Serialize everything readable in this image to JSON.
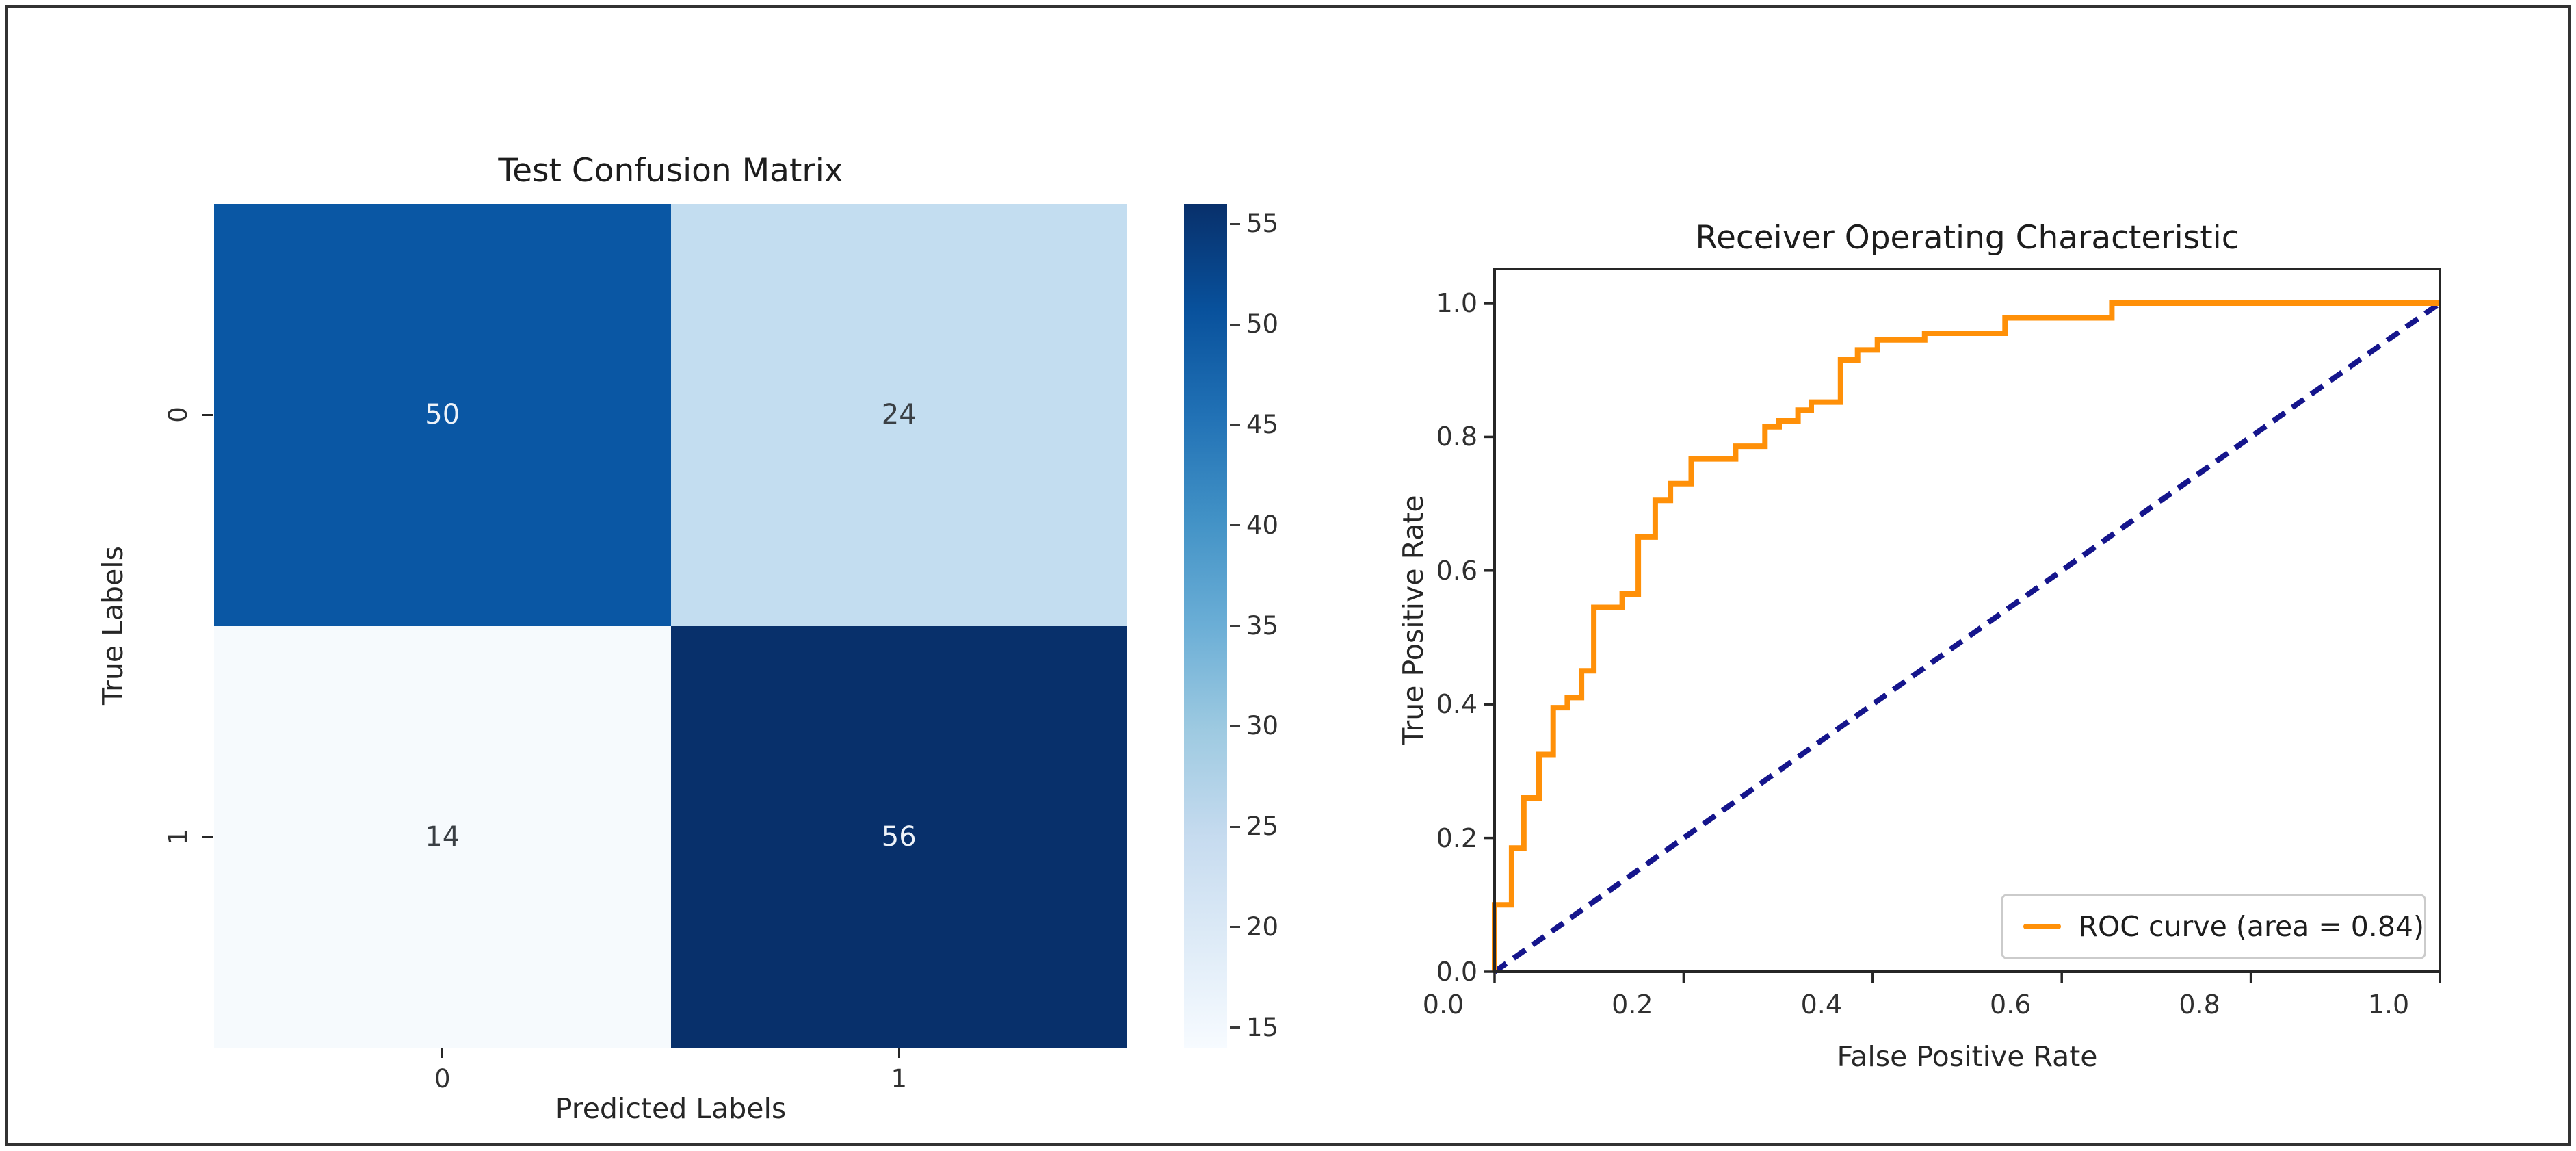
{
  "figure": {
    "frame_color": "#323232",
    "background": "#ffffff"
  },
  "colors": {
    "roc_curve": "#ff9008",
    "chance_line": "#15158c",
    "spine": "#262626",
    "legend_border": "#cbcbcb",
    "cell_text_light": "#eef3f9",
    "cell_text_dark": "#3a3f44"
  },
  "chart_data": [
    {
      "type": "heatmap",
      "title": "Test Confusion Matrix",
      "xlabel": "Predicted Labels",
      "ylabel": "True Labels",
      "col_labels": [
        "0",
        "1"
      ],
      "row_labels": [
        "0",
        "1"
      ],
      "matrix": [
        [
          50,
          24
        ],
        [
          14,
          56
        ]
      ],
      "cell_colors": [
        [
          "#0a57a4",
          "#c3ddf0"
        ],
        [
          "#f6fafd",
          "#08306b"
        ]
      ],
      "cell_text_colors": [
        [
          "#eef3f9",
          "#3a3f44"
        ],
        [
          "#3a3f44",
          "#eef3f9"
        ]
      ],
      "colormap": "Blues",
      "colorbar": {
        "vmin": 14,
        "vmax": 56,
        "ticks": [
          15,
          20,
          25,
          30,
          35,
          40,
          45,
          50,
          55
        ],
        "gradient_stops": [
          "#f7fbff",
          "#deebf7",
          "#c6dbef",
          "#9ecae1",
          "#6baed6",
          "#4292c6",
          "#2171b5",
          "#08519c",
          "#08306b"
        ]
      }
    },
    {
      "type": "line",
      "title": "Receiver Operating Characteristic",
      "xlabel": "False Positive Rate",
      "ylabel": "True Positive Rate",
      "xlim": [
        0.0,
        1.0
      ],
      "ylim": [
        0.0,
        1.05
      ],
      "xticks": [
        "0.0",
        "0.2",
        "0.4",
        "0.6",
        "0.8",
        "1.0"
      ],
      "yticks": [
        "0.0",
        "0.2",
        "0.4",
        "0.6",
        "0.8",
        "1.0"
      ],
      "grid": false,
      "legend_position": "lower right",
      "legend": {
        "label": "ROC curve (area = 0.84)"
      },
      "auc": 0.84,
      "series": [
        {
          "name": "ROC curve (area = 0.84)",
          "color": "#ff9008",
          "style": "solid",
          "points": [
            [
              0.0,
              0.0
            ],
            [
              0.0,
              0.1
            ],
            [
              0.018,
              0.1
            ],
            [
              0.018,
              0.185
            ],
            [
              0.031,
              0.185
            ],
            [
              0.031,
              0.26
            ],
            [
              0.047,
              0.26
            ],
            [
              0.047,
              0.325
            ],
            [
              0.062,
              0.325
            ],
            [
              0.062,
              0.395
            ],
            [
              0.077,
              0.395
            ],
            [
              0.077,
              0.41
            ],
            [
              0.092,
              0.41
            ],
            [
              0.092,
              0.45
            ],
            [
              0.105,
              0.45
            ],
            [
              0.105,
              0.545
            ],
            [
              0.135,
              0.545
            ],
            [
              0.135,
              0.565
            ],
            [
              0.152,
              0.565
            ],
            [
              0.152,
              0.65
            ],
            [
              0.17,
              0.65
            ],
            [
              0.17,
              0.705
            ],
            [
              0.186,
              0.705
            ],
            [
              0.186,
              0.73
            ],
            [
              0.208,
              0.73
            ],
            [
              0.208,
              0.767
            ],
            [
              0.255,
              0.767
            ],
            [
              0.255,
              0.786
            ],
            [
              0.286,
              0.786
            ],
            [
              0.286,
              0.815
            ],
            [
              0.301,
              0.815
            ],
            [
              0.301,
              0.824
            ],
            [
              0.321,
              0.824
            ],
            [
              0.321,
              0.84
            ],
            [
              0.335,
              0.84
            ],
            [
              0.335,
              0.852
            ],
            [
              0.366,
              0.852
            ],
            [
              0.366,
              0.915
            ],
            [
              0.384,
              0.915
            ],
            [
              0.384,
              0.93
            ],
            [
              0.405,
              0.93
            ],
            [
              0.405,
              0.945
            ],
            [
              0.455,
              0.945
            ],
            [
              0.455,
              0.955
            ],
            [
              0.54,
              0.955
            ],
            [
              0.54,
              0.978
            ],
            [
              0.653,
              0.978
            ],
            [
              0.653,
              1.0
            ],
            [
              1.0,
              1.0
            ]
          ]
        },
        {
          "name": "chance-diagonal",
          "color": "#15158c",
          "style": "dashed",
          "points": [
            [
              0.0,
              0.0
            ],
            [
              1.0,
              1.0
            ]
          ]
        }
      ]
    }
  ]
}
